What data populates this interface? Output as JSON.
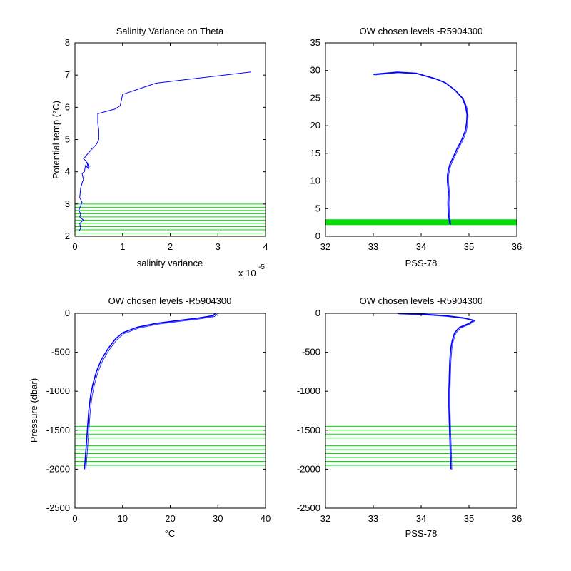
{
  "chart_data": [
    {
      "type": "line",
      "title": "Salinity Variance on Theta",
      "xlabel": "salinity variance",
      "ylabel": "Potential temp (°C)",
      "xlim": [
        0,
        4
      ],
      "ylim": [
        2,
        8
      ],
      "xticks": [
        0,
        1,
        2,
        3,
        4
      ],
      "xtick_labels": [
        "0",
        "1",
        "2",
        "3",
        "4"
      ],
      "yticks": [
        2,
        3,
        4,
        5,
        6,
        7,
        8
      ],
      "ytick_labels": [
        "2",
        "3",
        "4",
        "5",
        "6",
        "7",
        "8"
      ],
      "x_exponent_label": "x 10",
      "x_exponent_power": "-5",
      "line_color": "#0000ff",
      "level_color": "#00e000",
      "series": [
        {
          "x": [
            0.08,
            0.12,
            0.1,
            0.18,
            0.1,
            0.12,
            0.08,
            0.12,
            0.15,
            0.1,
            0.12,
            0.16,
            0.18,
            0.15,
            0.2,
            0.22,
            0.28,
            0.25,
            0.3,
            0.22,
            0.18,
            0.35,
            0.45,
            0.5,
            0.5,
            0.48,
            0.48,
            0.85,
            0.95,
            1.0,
            1.7,
            3.7
          ],
          "y": [
            2.15,
            2.25,
            2.4,
            2.5,
            2.6,
            2.7,
            2.8,
            2.95,
            3.05,
            3.2,
            3.5,
            3.7,
            3.75,
            3.95,
            4.0,
            4.2,
            4.1,
            4.3,
            4.15,
            4.35,
            4.4,
            4.7,
            4.85,
            5.0,
            5.3,
            5.5,
            5.8,
            5.95,
            6.05,
            6.4,
            6.75,
            7.1
          ]
        }
      ],
      "levels": [
        2.1,
        2.2,
        2.3,
        2.4,
        2.5,
        2.6,
        2.7,
        2.8,
        2.9,
        3.0
      ]
    },
    {
      "type": "line",
      "title": "OW chosen levels -R5904300",
      "xlabel": "PSS-78",
      "ylabel": "",
      "xlim": [
        32,
        36
      ],
      "ylim": [
        0,
        35
      ],
      "xticks": [
        32,
        33,
        34,
        35,
        36
      ],
      "xtick_labels": [
        "32",
        "33",
        "34",
        "35",
        "36"
      ],
      "yticks": [
        0,
        5,
        10,
        15,
        20,
        25,
        30,
        35
      ],
      "ytick_labels": [
        "0",
        "5",
        "10",
        "15",
        "20",
        "25",
        "30",
        "35"
      ],
      "line_color": "#0000ff",
      "level_color": "#00e000",
      "series": [
        {
          "x": [
            34.6,
            34.57,
            34.56,
            34.57,
            34.55,
            34.55,
            34.57,
            34.6,
            34.68,
            34.76,
            34.85,
            34.92,
            34.95,
            34.96,
            34.93,
            34.86,
            34.7,
            34.5,
            34.3,
            33.9,
            33.5,
            33.0
          ],
          "y": [
            2.2,
            4,
            6,
            8,
            10,
            11,
            12,
            13,
            14.5,
            16,
            17.5,
            19,
            20.5,
            22,
            23.5,
            25,
            26.5,
            27.8,
            28.5,
            29.5,
            29.7,
            29.3
          ]
        }
      ],
      "levels": [
        2.1,
        2.2,
        2.3,
        2.4,
        2.5,
        2.6,
        2.7,
        2.8,
        2.9,
        3.0
      ]
    },
    {
      "type": "line",
      "title": "OW chosen levels -R5904300",
      "xlabel": "°C",
      "ylabel": "Pressure (dbar)",
      "xlim": [
        0,
        40
      ],
      "ylim": [
        -2500,
        0
      ],
      "xticks": [
        0,
        10,
        20,
        30,
        40
      ],
      "xtick_labels": [
        "0",
        "10",
        "20",
        "30",
        "40"
      ],
      "yticks": [
        -2500,
        -2000,
        -1500,
        -1000,
        -500,
        0
      ],
      "ytick_labels": [
        "-2500",
        "-2000",
        "-1500",
        "-1000",
        "-500",
        "0"
      ],
      "line_color": "#0000ff",
      "level_color": "#00e000",
      "series": [
        {
          "x": [
            2.0,
            2.3,
            2.6,
            2.9,
            3.3,
            3.8,
            4.5,
            5.5,
            7.0,
            8.5,
            10.0,
            13.0,
            17.0,
            22.0,
            26.0,
            29.0,
            29.5
          ],
          "y": [
            -2000,
            -1750,
            -1500,
            -1250,
            -1050,
            -900,
            -750,
            -600,
            -450,
            -330,
            -250,
            -180,
            -130,
            -90,
            -60,
            -30,
            0
          ]
        }
      ],
      "levels": [
        -1450,
        -1500,
        -1550,
        -1600,
        -1700,
        -1750,
        -1800,
        -1850,
        -1900,
        -1950
      ]
    },
    {
      "type": "line",
      "title": "OW chosen levels -R5904300",
      "xlabel": "PSS-78",
      "ylabel": "",
      "xlim": [
        32,
        36
      ],
      "ylim": [
        -2500,
        0
      ],
      "xticks": [
        32,
        33,
        34,
        35,
        36
      ],
      "xtick_labels": [
        "32",
        "33",
        "34",
        "35",
        "36"
      ],
      "yticks": [
        -2500,
        -2000,
        -1500,
        -1000,
        -500,
        0
      ],
      "ytick_labels": [
        "-2500",
        "-2000",
        "-1500",
        "-1000",
        "-500",
        "0"
      ],
      "line_color": "#0000ff",
      "level_color": "#00e000",
      "series": [
        {
          "x": [
            34.62,
            34.61,
            34.6,
            34.59,
            34.58,
            34.58,
            34.59,
            34.6,
            34.62,
            34.65,
            34.7,
            34.8,
            35.0,
            35.1,
            34.9,
            34.5,
            34.0,
            33.5
          ],
          "y": [
            -2000,
            -1800,
            -1600,
            -1400,
            -1200,
            -1000,
            -800,
            -600,
            -450,
            -350,
            -250,
            -180,
            -130,
            -90,
            -60,
            -30,
            -10,
            0
          ]
        }
      ],
      "levels": [
        -1450,
        -1500,
        -1550,
        -1600,
        -1700,
        -1750,
        -1800,
        -1850,
        -1900,
        -1950
      ]
    }
  ]
}
